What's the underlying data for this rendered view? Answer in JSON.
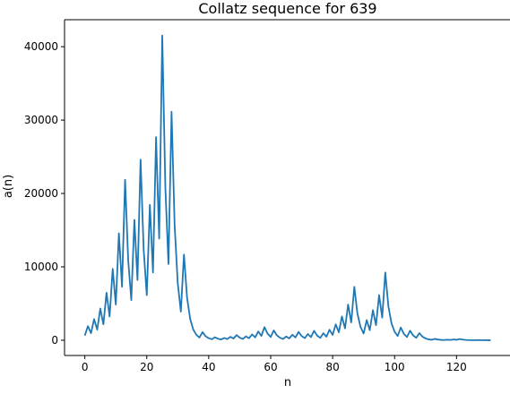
{
  "chart_data": {
    "type": "line",
    "title": "Collatz sequence for 639",
    "xlabel": "n",
    "ylabel": "a(n)",
    "xlim": [
      -6.55,
      137.55
    ],
    "ylim": [
      -2081,
      43679
    ],
    "xticks": [
      0,
      20,
      40,
      60,
      80,
      100,
      120
    ],
    "yticks": [
      0,
      10000,
      20000,
      30000,
      40000
    ],
    "grid": false,
    "line_color": "#1f77b4",
    "series": [
      {
        "values": [
          639,
          1918,
          959,
          2878,
          1439,
          4318,
          2159,
          6478,
          3239,
          9718,
          4859,
          14578,
          7289,
          21868,
          10934,
          5467,
          16402,
          8201,
          24604,
          12302,
          6151,
          18454,
          9227,
          27682,
          13841,
          41524,
          20762,
          10381,
          31144,
          15572,
          7786,
          3893,
          11680,
          5840,
          2920,
          1460,
          730,
          365,
          1096,
          548,
          274,
          137,
          412,
          206,
          103,
          310,
          155,
          466,
          233,
          700,
          350,
          175,
          526,
          263,
          790,
          395,
          1186,
          593,
          1780,
          890,
          445,
          1336,
          668,
          334,
          167,
          502,
          251,
          754,
          377,
          1132,
          566,
          283,
          850,
          425,
          1276,
          638,
          319,
          958,
          479,
          1438,
          719,
          2158,
          1079,
          3238,
          1619,
          4858,
          2429,
          7288,
          3644,
          1822,
          911,
          2734,
          1367,
          4102,
          2051,
          6154,
          3077,
          9232,
          4616,
          2308,
          1154,
          577,
          1732,
          866,
          433,
          1300,
          650,
          325,
          976,
          488,
          244,
          122,
          61,
          184,
          92,
          46,
          23,
          70,
          35,
          106,
          53,
          160,
          80,
          40,
          20,
          10,
          5,
          16,
          8,
          4,
          2,
          1
        ]
      }
    ]
  }
}
